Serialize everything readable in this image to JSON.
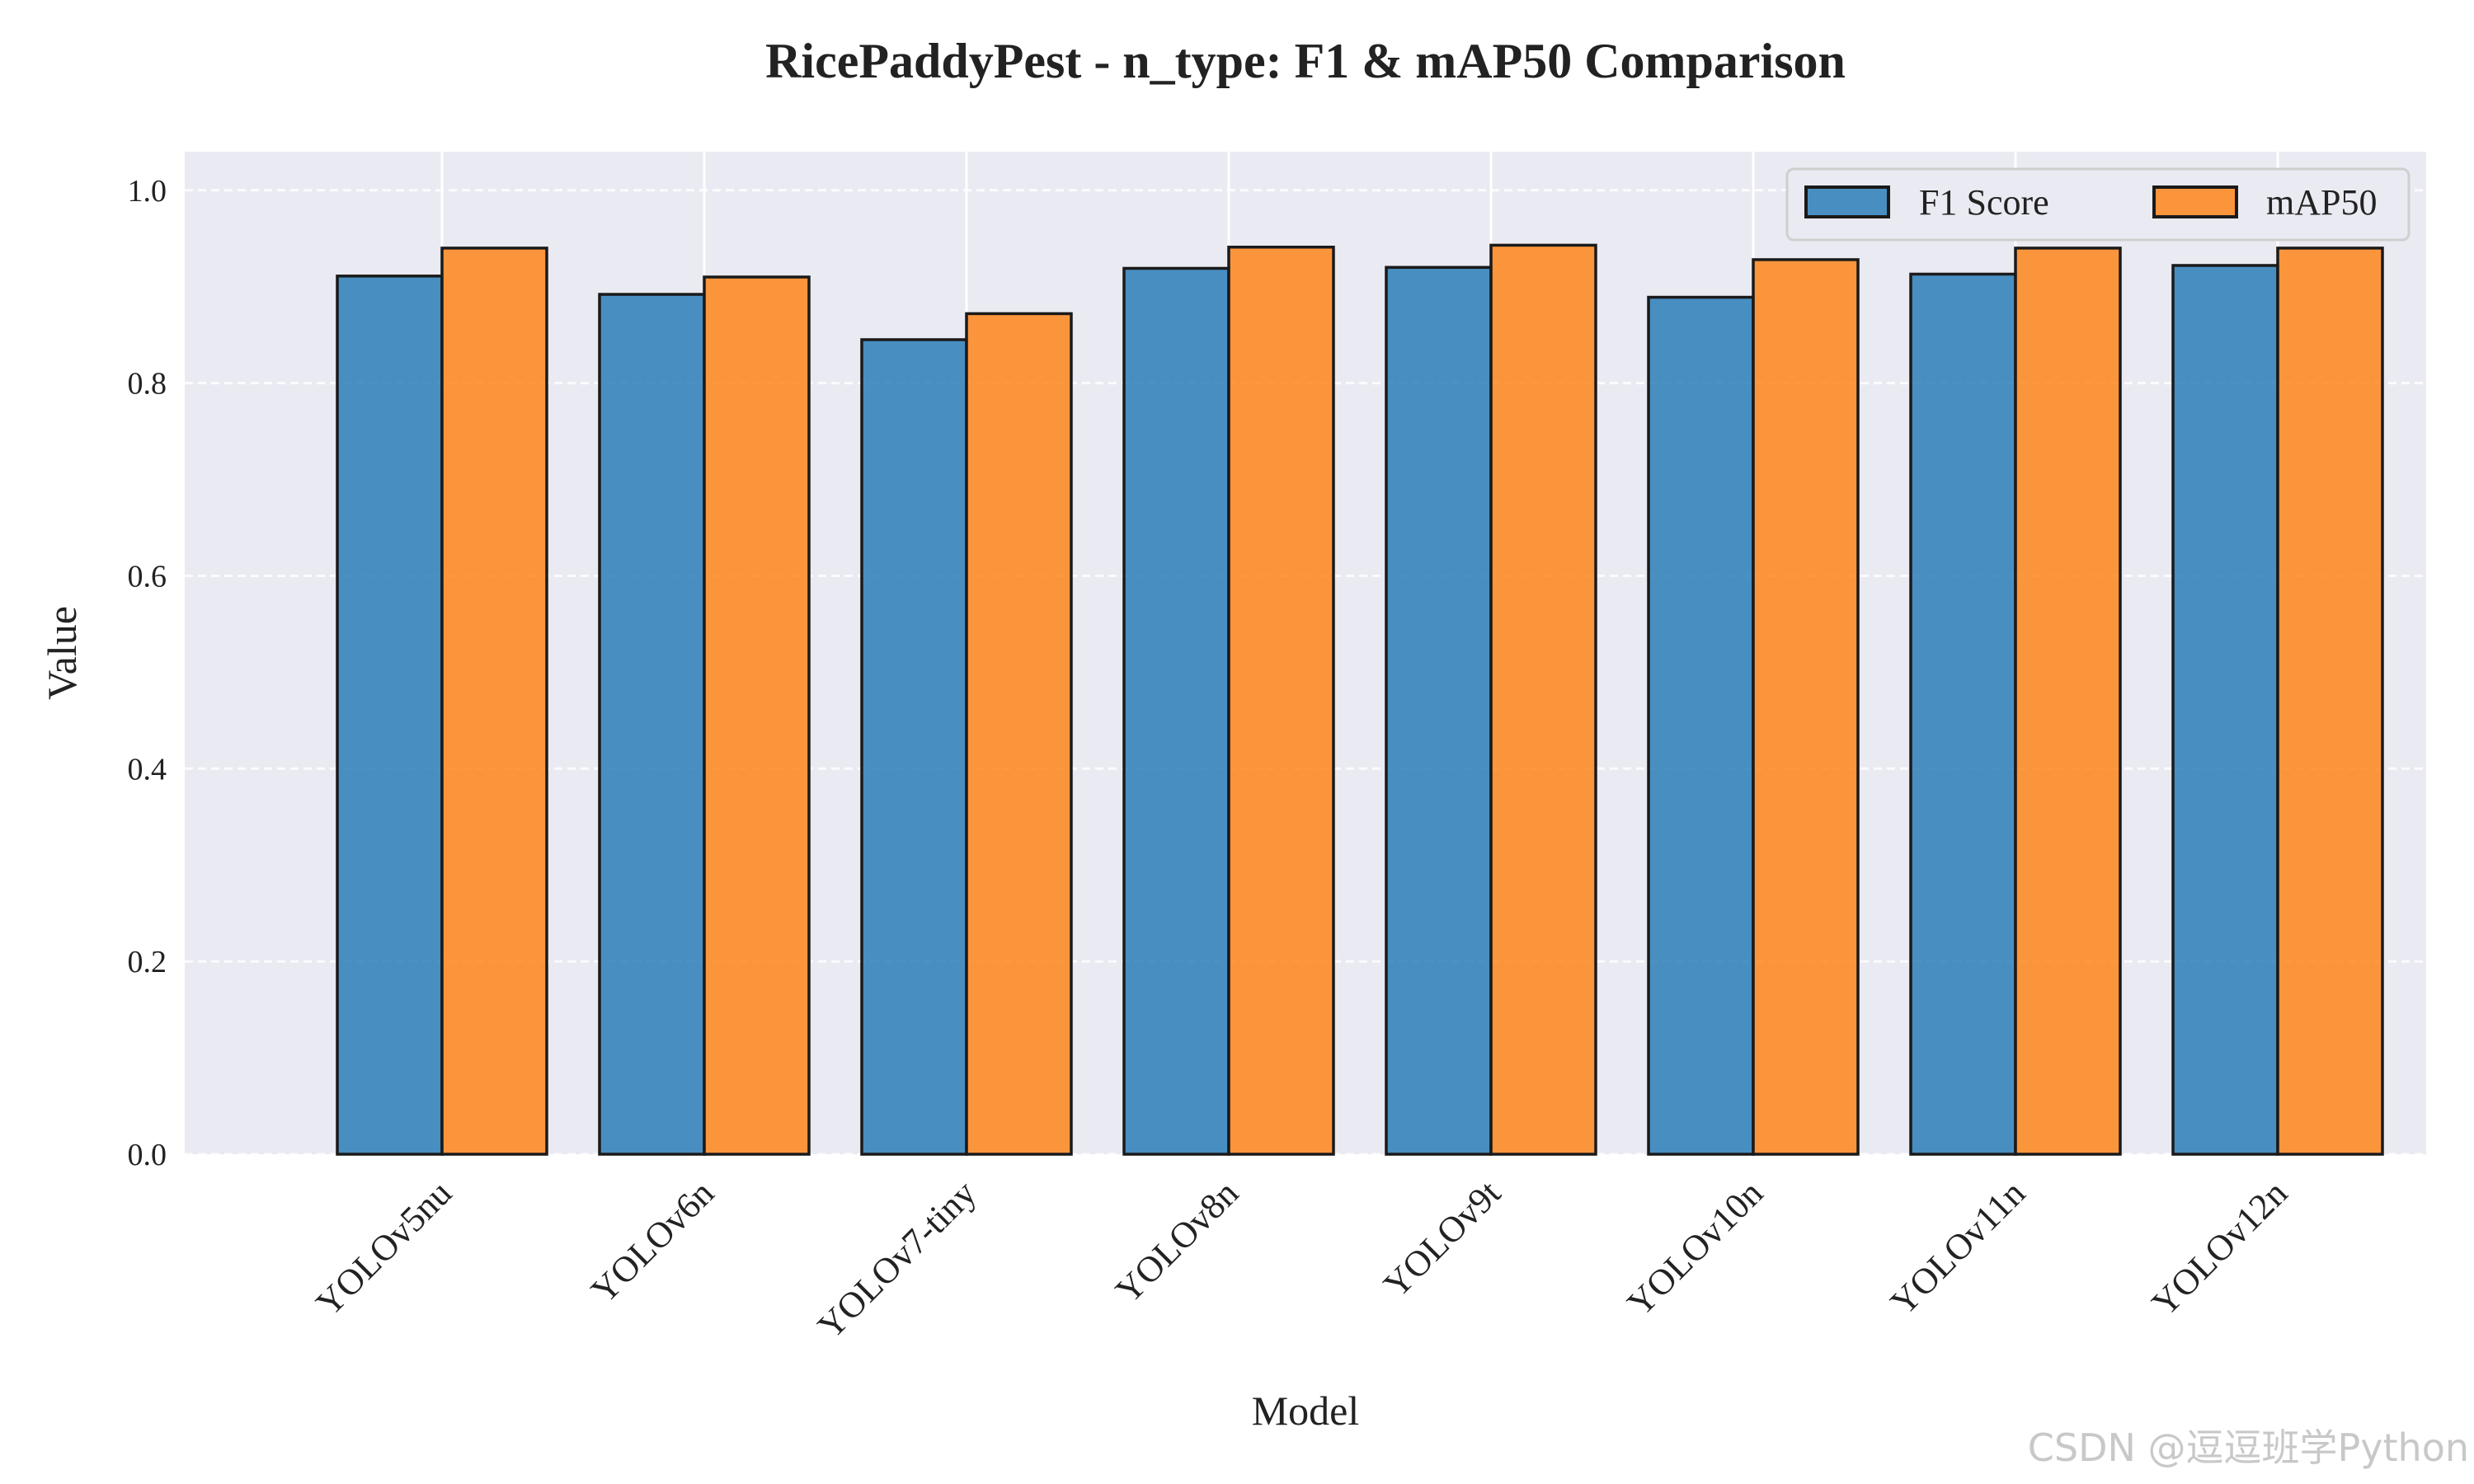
{
  "chart_data": {
    "type": "bar",
    "title": "RicePaddyPest - n_type: F1 & mAP50 Comparison",
    "xlabel": "Model",
    "ylabel": "Value",
    "categories": [
      "YOLOv5nu",
      "YOLOv6n",
      "YOLOv7-tiny",
      "YOLOv8n",
      "YOLOv9t",
      "YOLOv10n",
      "YOLOv11n",
      "YOLOv12n"
    ],
    "series": [
      {
        "name": "F1 Score",
        "color": "#1f77b4",
        "values": [
          0.911,
          0.892,
          0.845,
          0.919,
          0.92,
          0.889,
          0.913,
          0.922
        ]
      },
      {
        "name": "mAP50",
        "color": "#ff7f0e",
        "values": [
          0.94,
          0.91,
          0.872,
          0.941,
          0.943,
          0.928,
          0.94,
          0.94
        ]
      }
    ],
    "ylim": [
      0,
      1.04
    ],
    "yticks": [
      "0.0",
      "0.2",
      "0.4",
      "0.6",
      "0.8",
      "1.0"
    ],
    "grid": true,
    "legend_position": "top-right",
    "background": "#eaeaf2"
  },
  "watermark": "CSDN @逗逗班学Python"
}
